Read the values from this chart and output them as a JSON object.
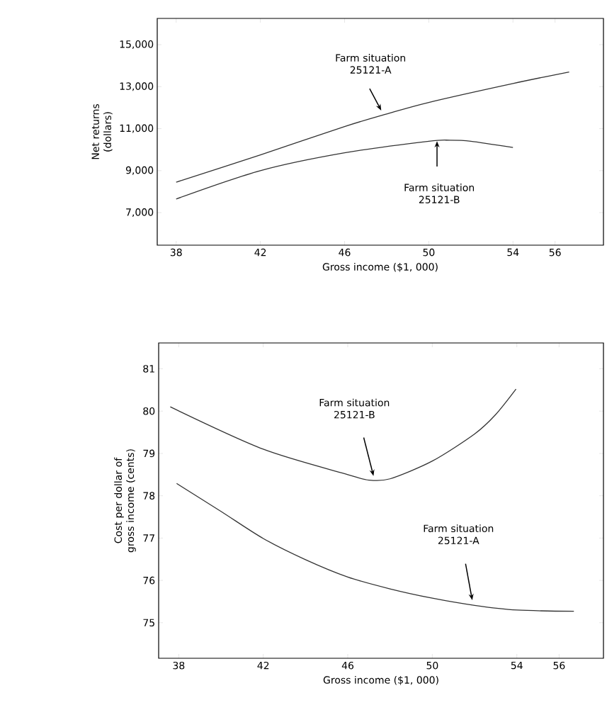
{
  "chart_data": [
    {
      "type": "line",
      "xlabel": "Gross income ($1, 000)",
      "ylabel": "Net returns (dollars)",
      "xlim": [
        37.1,
        58.3
      ],
      "ylim": [
        5450,
        16250
      ],
      "xticks": [
        38,
        42,
        46,
        50,
        54,
        56
      ],
      "yticks": [
        {
          "value": 7000,
          "label": "7,000"
        },
        {
          "value": 9000,
          "label": "9,000"
        },
        {
          "value": 11000,
          "label": "11,000"
        },
        {
          "value": 13000,
          "label": "13,000"
        },
        {
          "value": 15000,
          "label": "15,000"
        }
      ],
      "series": [
        {
          "color": "#333333",
          "x": [
            38,
            42,
            46,
            48,
            50,
            54,
            56.67
          ],
          "values": [
            8450,
            9750,
            11100,
            11700,
            12250,
            13150,
            13700
          ]
        },
        {
          "color": "#333333",
          "x": [
            38,
            42,
            46,
            50,
            51,
            52,
            54
          ],
          "values": [
            7650,
            9000,
            9850,
            10400,
            10450,
            10400,
            10100
          ]
        }
      ],
      "annotations": [
        "Farm situation 25121-A",
        "Farm situation 25121-B"
      ]
    },
    {
      "type": "line",
      "xlabel": "Gross income ($1, 000)",
      "ylabel": "Cost per dollar of gross income (cents)",
      "xlim": [
        37.05,
        58.1
      ],
      "ylim": [
        74.16,
        81.61
      ],
      "xticks": [
        38,
        42,
        46,
        50,
        54,
        56
      ],
      "yticks": [
        75,
        76,
        77,
        78,
        79,
        80,
        81
      ],
      "series": [
        {
          "color": "#333333",
          "x": [
            37.6,
            42,
            46,
            47,
            48,
            50,
            52,
            53,
            53.96
          ],
          "values": [
            80.1,
            79.1,
            78.5,
            78.37,
            78.4,
            78.82,
            79.46,
            79.92,
            80.52
          ]
        },
        {
          "color": "#333333",
          "x": [
            37.9,
            40,
            42,
            44,
            46,
            48,
            50,
            52,
            54,
            56.7
          ],
          "values": [
            78.29,
            77.63,
            76.99,
            76.49,
            76.08,
            75.8,
            75.58,
            75.41,
            75.3,
            75.27
          ]
        }
      ],
      "annotations": [
        "Farm situation 25121-B",
        "Farm situation 25121-A"
      ]
    }
  ]
}
